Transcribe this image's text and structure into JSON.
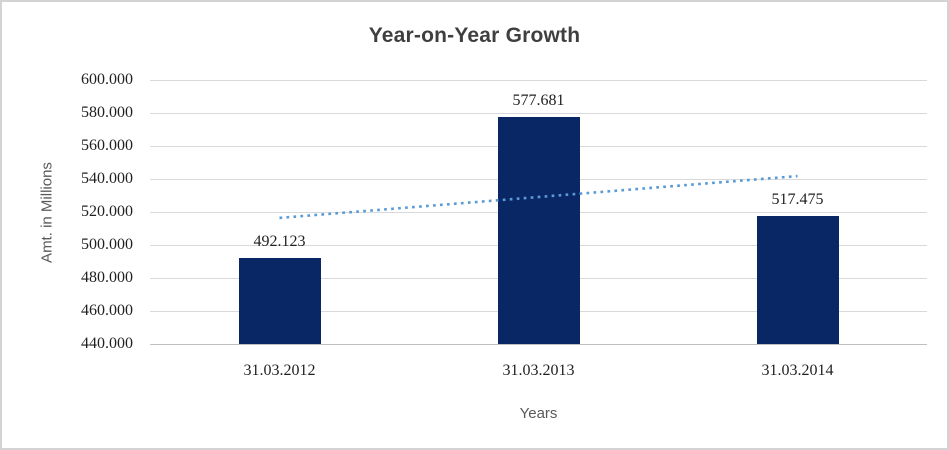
{
  "chart_data": {
    "type": "bar",
    "title": "Year-on-Year Growth",
    "xlabel": "Years",
    "ylabel": "Amt. in Millions",
    "categories": [
      "31.03.2012",
      "31.03.2013",
      "31.03.2014"
    ],
    "values": [
      492.123,
      577.681,
      517.475
    ],
    "data_labels": [
      "492.123",
      "577.681",
      "517.475"
    ],
    "ylim": [
      440,
      600
    ],
    "ytick_step": 20,
    "ytick_labels": [
      "600.000",
      "580.000",
      "560.000",
      "540.000",
      "520.000",
      "500.000",
      "480.000",
      "460.000",
      "440.000"
    ],
    "grid": "horizontal-only",
    "legend": "none",
    "trendline": {
      "type": "linear",
      "style": "dotted",
      "start_value": 516.42,
      "end_value": 541.77
    },
    "colors": {
      "bar": "#0a2765",
      "trendline": "#5b9bd5",
      "gridline": "#d9d9d9",
      "axis_line": "#bfbfbf",
      "title_text": "#3f3f3f",
      "axis_title_text": "#595959",
      "tick_label_text": "#1f1f1f",
      "frame_border": "#d3d3d3"
    }
  }
}
